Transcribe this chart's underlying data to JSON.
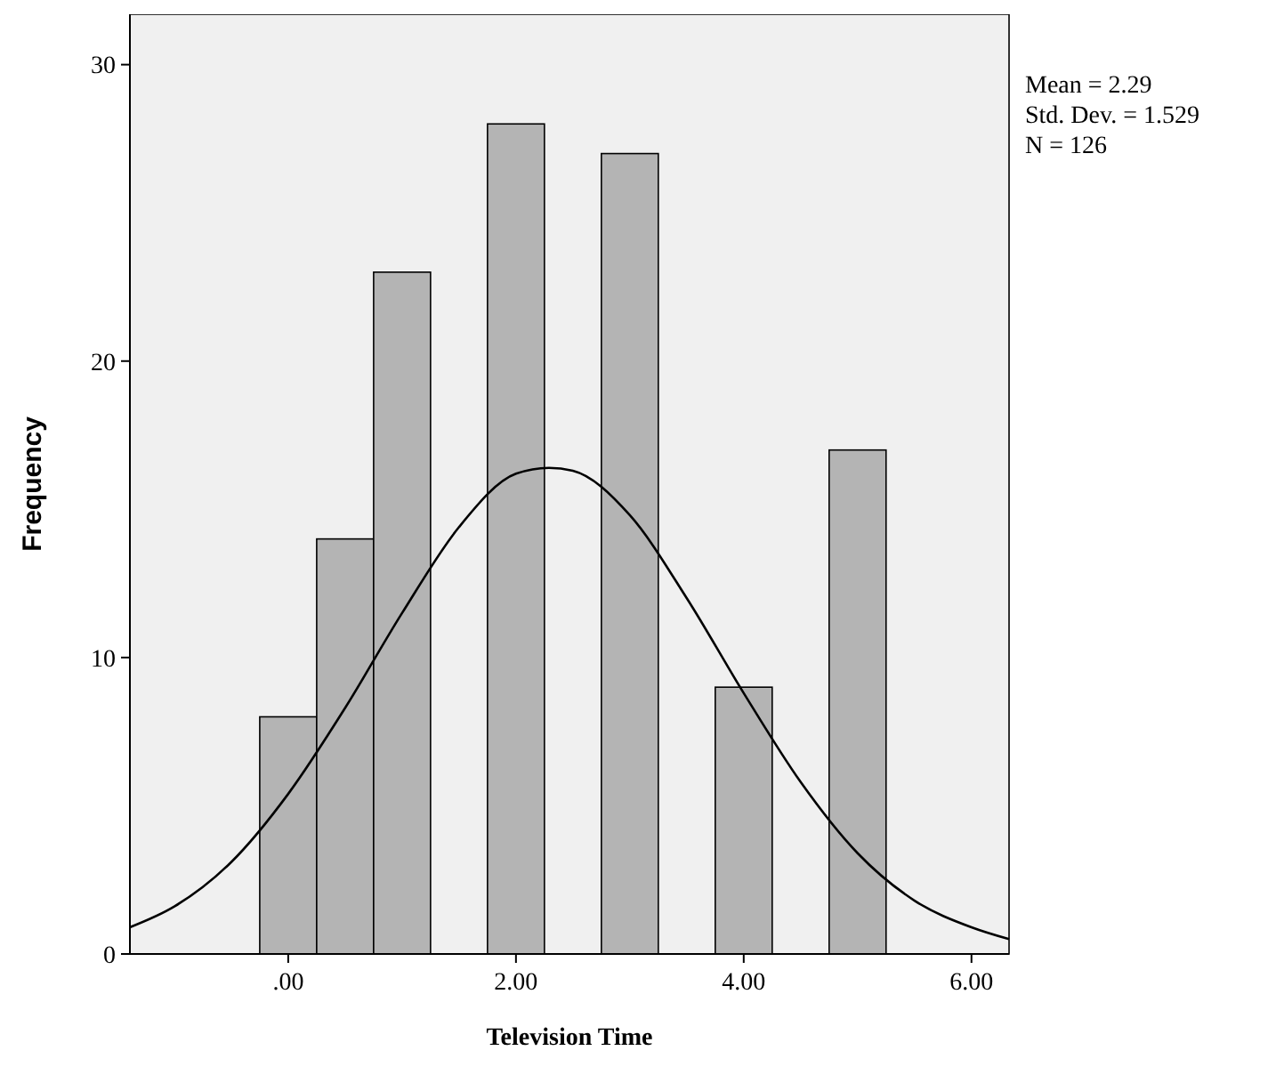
{
  "chart_data": {
    "type": "histogram",
    "xlabel": "Television Time",
    "ylabel": "Frequency",
    "annotations": [
      "Mean = 2.29",
      "Std. Dev. = 1.529",
      "N = 126"
    ],
    "bins": [
      -0.25,
      0.25,
      0.75,
      1.25,
      1.75,
      2.25,
      2.75,
      3.25,
      3.75,
      4.25,
      4.75,
      5.25
    ],
    "values": [
      8,
      14,
      23,
      0,
      28,
      0,
      27,
      0,
      9,
      0,
      17
    ],
    "color": "#b4b4b4",
    "series": [
      {
        "type": "line",
        "color": "#000000",
        "x": [
          -1.39,
          -1,
          -0.5,
          0,
          0.5,
          1,
          1.5,
          2,
          2.29,
          2.5,
          3,
          3.5,
          4,
          4.5,
          5,
          5.5,
          6,
          6.33
        ],
        "values": [
          0.9,
          1.6,
          3.1,
          5.4,
          8.3,
          11.5,
          14.4,
          16.2,
          16.4,
          16.3,
          14.8,
          12.0,
          8.8,
          5.8,
          3.4,
          1.8,
          0.9,
          0.5
        ]
      }
    ],
    "xlim": [
      -1.39,
      6.33
    ],
    "ylim": [
      0,
      31.7
    ],
    "xticks": [
      {
        "value": 0,
        "label": ".00"
      },
      {
        "value": 2,
        "label": "2.00"
      },
      {
        "value": 4,
        "label": "4.00"
      },
      {
        "value": 6,
        "label": "6.00"
      }
    ],
    "yticks": [
      0,
      10,
      20,
      30
    ],
    "grid": false
  }
}
